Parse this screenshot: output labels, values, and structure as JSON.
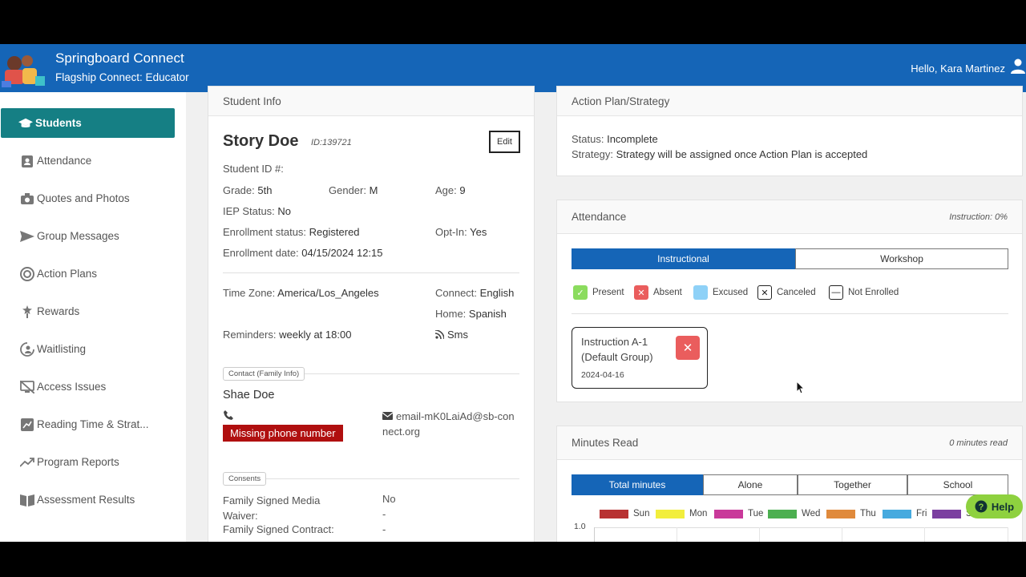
{
  "app": {
    "title": "Springboard Connect",
    "subtitle": "Flagship Connect: Educator",
    "greeting": "Hello, Kara Martinez"
  },
  "sidebar": {
    "items": [
      {
        "label": "Students",
        "icon": "graduation-cap-icon"
      },
      {
        "label": "Attendance",
        "icon": "clipboard-user-icon"
      },
      {
        "label": "Quotes and Photos",
        "icon": "camera-icon"
      },
      {
        "label": "Group Messages",
        "icon": "send-icon"
      },
      {
        "label": "Action Plans",
        "icon": "target-icon"
      },
      {
        "label": "Rewards",
        "icon": "award-icon"
      },
      {
        "label": "Waitlisting",
        "icon": "user-sync-icon"
      },
      {
        "label": "Access Issues",
        "icon": "access-issues-icon"
      },
      {
        "label": "Reading Time & Strat...",
        "icon": "chart-edit-icon"
      },
      {
        "label": "Program Reports",
        "icon": "trend-icon"
      },
      {
        "label": "Assessment Results",
        "icon": "book-icon"
      }
    ]
  },
  "student_info": {
    "header": "Student Info",
    "name": "Story Doe",
    "id": "ID:139721",
    "edit_label": "Edit",
    "student_id_label": "Student ID #:",
    "grade_label": "Grade:",
    "grade": "5th",
    "gender_label": "Gender:",
    "gender": "M",
    "age_label": "Age:",
    "age": "9",
    "iep_label": "IEP Status:",
    "iep": "No",
    "enroll_status_label": "Enrollment status:",
    "enroll_status": "Registered",
    "optin_label": "Opt-In:",
    "optin": "Yes",
    "enroll_date_label": "Enrollment date:",
    "enroll_date": "04/15/2024 12:15",
    "timezone_label": "Time Zone:",
    "timezone": "America/Los_Angeles",
    "connect_label": "Connect:",
    "connect": "English",
    "home_label": "Home:",
    "home": "Spanish",
    "reminders_label": "Reminders:",
    "reminders": "weekly at 18:00",
    "sms": "Sms",
    "contact_chip": "Contact (Family Info)",
    "contact_name": "Shae Doe",
    "missing_phone": "Missing phone number",
    "email": "email-mK0LaiAd@sb-connect.org",
    "consents_chip": "Consents",
    "media_waiver_label": "Family Signed Media Waiver:",
    "media_waiver": "No",
    "contract_label": "Family Signed Contract:",
    "contract": "-",
    "blank_value": "-"
  },
  "action_plan": {
    "header": "Action Plan/Strategy",
    "status_label": "Status:",
    "status": "Incomplete",
    "strategy_label": "Strategy:",
    "strategy": "Strategy will be assigned once Action Plan is accepted"
  },
  "attendance": {
    "header": "Attendance",
    "instruction_pct": "Instruction: 0%",
    "tabs": [
      "Instructional",
      "Workshop"
    ],
    "legend": [
      {
        "label": "Present",
        "color": "#8bdc5e"
      },
      {
        "label": "Absent",
        "color": "#ea5d5d"
      },
      {
        "label": "Excused",
        "color": "#8ed1f7"
      },
      {
        "label": "Canceled",
        "color": "#ffffff"
      },
      {
        "label": "Not Enrolled",
        "color": "#ffffff"
      }
    ],
    "session_name": "Instruction A-1 (Default Group)",
    "session_date": "2024-04-16"
  },
  "minutes_read": {
    "header": "Minutes Read",
    "summary": "0 minutes read",
    "tabs": [
      "Total minutes",
      "Alone",
      "Together",
      "School"
    ],
    "days": [
      {
        "label": "Sun",
        "color": "#b83232"
      },
      {
        "label": "Mon",
        "color": "#f2ee3c"
      },
      {
        "label": "Tue",
        "color": "#c9399a"
      },
      {
        "label": "Wed",
        "color": "#4caf50"
      },
      {
        "label": "Thu",
        "color": "#e08a3c"
      },
      {
        "label": "Fri",
        "color": "#46aadf"
      },
      {
        "label": "Sat",
        "color": "#7b3fa0"
      }
    ],
    "y_tick": "1.0"
  },
  "help_label": "Help"
}
